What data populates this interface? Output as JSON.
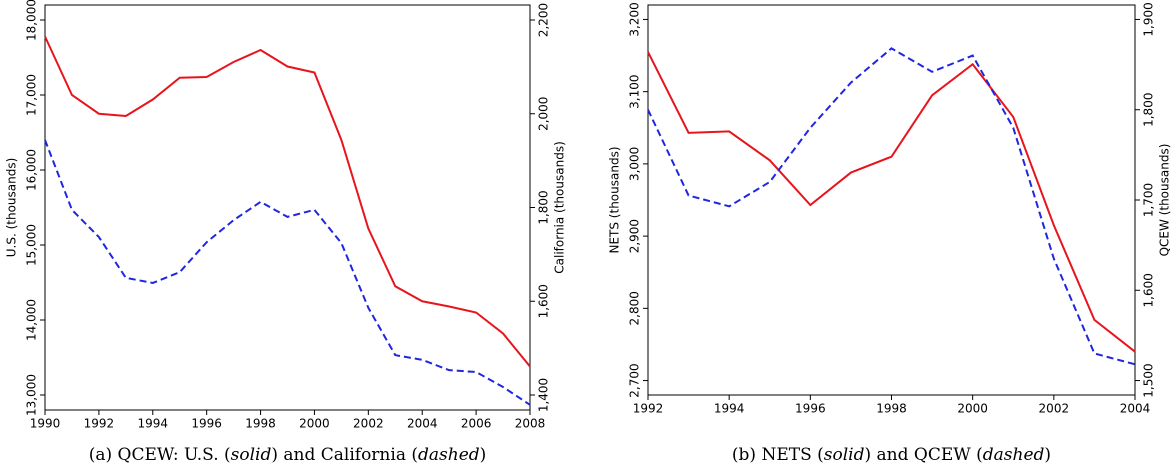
{
  "chart_data": [
    {
      "type": "line",
      "caption": [
        "(a) QCEW: U.S. (",
        "solid",
        ") and California (",
        "dashed",
        ")"
      ],
      "ylabel": "U.S. (thousands)",
      "y2label": "California (thousands)",
      "x": [
        1990,
        1991,
        1992,
        1993,
        1994,
        1995,
        1996,
        1997,
        1998,
        1999,
        2000,
        2001,
        2002,
        2003,
        2004,
        2005,
        2006,
        2007,
        2008
      ],
      "xlim": [
        1990,
        2008
      ],
      "xticks": [
        1990,
        1992,
        1994,
        1996,
        1998,
        2000,
        2002,
        2004,
        2006,
        2008
      ],
      "ylim": [
        12800,
        18200
      ],
      "yticks": [
        {
          "value": 13000,
          "label": "13,000"
        },
        {
          "value": 14000,
          "label": "14,000"
        },
        {
          "value": 15000,
          "label": "15,000"
        },
        {
          "value": 16000,
          "label": "16,000"
        },
        {
          "value": 17000,
          "label": "17,000"
        },
        {
          "value": 18000,
          "label": "18,000"
        }
      ],
      "y2lim": [
        1368,
        2232
      ],
      "y2ticks": [
        {
          "value": 1400,
          "label": "1,400"
        },
        {
          "value": 1600,
          "label": "1,600"
        },
        {
          "value": 1800,
          "label": "1,800"
        },
        {
          "value": 2000,
          "label": "2,000"
        },
        {
          "value": 2200,
          "label": "2,200"
        }
      ],
      "series": [
        {
          "color": "#e8141b",
          "style": "solid",
          "axis": "y",
          "values": [
            17780,
            17000,
            16750,
            16720,
            16940,
            17230,
            17240,
            17440,
            17600,
            17380,
            17300,
            16400,
            15220,
            14450,
            14250,
            14180,
            14100,
            13820,
            13380
          ]
        },
        {
          "color": "#1f26e0",
          "style": "dashed",
          "axis": "y2",
          "values": [
            1944,
            1795,
            1737,
            1650,
            1639,
            1662,
            1726,
            1773,
            1812,
            1780,
            1795,
            1724,
            1586,
            1485,
            1475,
            1453,
            1449,
            1417,
            1379
          ]
        }
      ]
    },
    {
      "type": "line",
      "caption": [
        "(b) NETS (",
        "solid",
        ") and QCEW (",
        "dashed",
        ")"
      ],
      "ylabel": "NETS (thousands)",
      "y2label": "QCEW (thousands)",
      "x": [
        1992,
        1993,
        1994,
        1995,
        1996,
        1997,
        1998,
        1999,
        2000,
        2001,
        2002,
        2003,
        2004
      ],
      "xlim": [
        1992,
        2004
      ],
      "xticks": [
        1992,
        1994,
        1996,
        1998,
        2000,
        2002,
        2004
      ],
      "ylim": [
        2680,
        3220
      ],
      "yticks": [
        {
          "value": 2700,
          "label": "2,700"
        },
        {
          "value": 2800,
          "label": "2,800"
        },
        {
          "value": 2900,
          "label": "2,900"
        },
        {
          "value": 3000,
          "label": "3,000"
        },
        {
          "value": 3100,
          "label": "3,100"
        },
        {
          "value": 3200,
          "label": "3,200"
        }
      ],
      "y2lim": [
        1484,
        1916
      ],
      "y2ticks": [
        {
          "value": 1500,
          "label": "1,500"
        },
        {
          "value": 1600,
          "label": "1,600"
        },
        {
          "value": 1700,
          "label": "1,700"
        },
        {
          "value": 1800,
          "label": "1,800"
        },
        {
          "value": 1900,
          "label": "1,900"
        }
      ],
      "series": [
        {
          "color": "#e8141b",
          "style": "solid",
          "axis": "y",
          "values": [
            3155,
            3043,
            3045,
            3005,
            2943,
            2988,
            3010,
            3095,
            3138,
            3065,
            2915,
            2784,
            2740
          ]
        },
        {
          "color": "#1f26e0",
          "style": "dashed",
          "axis": "y2",
          "values": [
            1800,
            1705,
            1693,
            1720,
            1780,
            1830,
            1868,
            1842,
            1860,
            1780,
            1635,
            1530,
            1518
          ]
        }
      ]
    }
  ]
}
